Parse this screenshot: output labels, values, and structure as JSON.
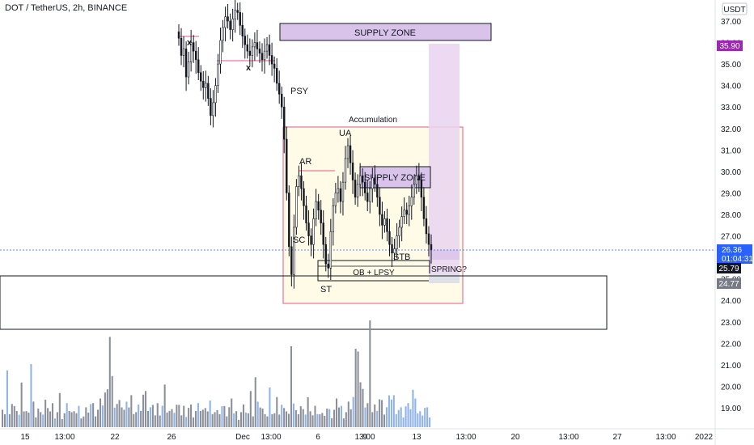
{
  "header": {
    "symbol_title": "DOT / TetherUS, 2h, BINANCE"
  },
  "price_axis": {
    "currency": "USDT",
    "ticks": [
      "37.00",
      "36.00",
      "35.00",
      "34.00",
      "33.00",
      "32.00",
      "31.00",
      "30.00",
      "29.00",
      "28.00",
      "27.00",
      "26.00",
      "25.00",
      "24.00",
      "23.00",
      "22.00",
      "21.00",
      "20.00",
      "19.00"
    ]
  },
  "time_axis": {
    "labels": [
      "15",
      "13:00",
      "22",
      "26",
      "Dec",
      "13:00",
      "6",
      "13:00",
      "9",
      "13",
      "13:00",
      "20",
      "13:00",
      "27",
      "13:00",
      "2022"
    ]
  },
  "price_badges": {
    "alert": "35.90",
    "last_price": "26.36",
    "countdown": "01:04:31",
    "level_a": "25.79",
    "level_b": "24.77"
  },
  "annotations": {
    "supply_zone_top": "SUPPLY ZONE",
    "supply_zone_mid": "SUPPLY ZONE",
    "accumulation": "Accumulation",
    "psy": "PSY",
    "ua": "UA",
    "ar": "AR",
    "sc": "SC",
    "st": "ST",
    "stb": "STB",
    "ob_lpsy": "OB + LPSY",
    "spring": "SPRING?",
    "x_mark_1": "x",
    "x_mark_2": "x"
  },
  "colors": {
    "candle": "#131722",
    "volume": "#8a8f99",
    "volume_recent": "#8fb3e8",
    "supply_fill": "#d9c3eb",
    "accum_fill": "#fffbe6",
    "accum_border": "#e05a8a",
    "alert_badge": "#9c27b0",
    "last_badge": "#2962ff",
    "level_a_badge": "#131722",
    "level_b_badge": "#787b86"
  },
  "chart_data": {
    "type": "candlestick",
    "price_range": [
      18.2,
      37.6
    ],
    "series": [
      {
        "close": [
          36.2,
          35.4,
          35.7,
          34.4,
          35.1,
          36.0,
          35.6,
          35.2,
          34.6,
          34.2,
          33.9,
          34.1,
          33.4,
          32.6,
          33.2,
          34.0,
          35.0,
          36.1,
          36.7,
          37.2,
          37.0,
          36.6,
          37.1,
          37.5,
          37.4,
          36.8,
          36.3,
          35.9,
          35.6,
          35.4,
          35.8,
          36.0,
          35.7,
          35.5,
          35.2,
          35.6,
          35.9,
          35.4,
          35.0,
          34.8,
          34.1,
          33.6,
          33.0,
          31.5,
          29.0,
          26.5,
          25.2,
          27.4,
          29.3,
          29.8,
          29.2,
          28.4,
          27.6,
          27.0,
          26.6,
          27.8,
          28.6,
          28.2,
          27.6,
          26.6,
          25.7,
          25.5,
          27.2,
          28.4,
          29.0,
          29.2,
          28.6,
          29.5,
          30.6,
          31.2,
          30.4,
          29.6,
          28.8,
          29.4,
          29.8,
          29.5,
          29.0,
          28.6,
          29.2,
          29.7,
          29.4,
          28.8,
          28.0,
          27.5,
          27.8,
          27.2,
          26.6,
          26.2,
          26.4,
          27.0,
          27.4,
          27.9,
          28.2,
          28.0,
          28.4,
          28.8,
          29.4,
          29.8,
          29.6,
          28.8,
          27.8,
          27.1,
          26.6,
          26.36
        ],
        "volume": [
          1.2,
          0.6,
          2.0,
          0.8,
          1.0,
          0.7,
          0.9,
          0.5,
          1.4,
          0.8,
          0.6,
          1.0,
          0.7,
          0.9,
          0.6,
          0.8,
          0.5,
          0.7,
          1.1,
          0.6,
          0.8,
          0.9,
          0.6,
          0.7,
          1.2,
          0.5,
          0.6,
          0.8,
          0.9,
          0.6,
          0.5,
          0.7,
          0.8,
          0.6,
          0.5,
          0.7,
          0.9,
          1.0,
          0.8,
          0.6,
          0.7,
          0.9,
          1.1,
          1.3,
          2.6,
          4.2,
          1.8,
          1.2,
          1.0,
          0.9,
          1.1,
          0.7,
          0.8,
          1.0,
          1.2,
          0.9,
          0.7,
          0.8,
          1.0,
          1.4,
          1.2,
          0.9,
          0.8,
          0.7,
          0.6,
          0.9,
          0.8,
          1.0,
          1.5,
          0.9,
          0.7,
          0.6,
          0.8,
          0.9,
          0.7,
          0.6,
          0.8,
          0.7,
          0.9,
          0.8,
          0.6,
          0.7,
          0.8,
          0.9,
          0.7,
          0.6,
          0.8,
          1.0,
          0.9,
          0.7,
          0.6,
          0.8,
          0.9,
          0.7,
          0.6,
          0.8,
          0.9,
          0.7,
          0.6,
          0.5,
          0.7,
          0.8,
          0.9,
          0.6
        ]
      }
    ]
  }
}
